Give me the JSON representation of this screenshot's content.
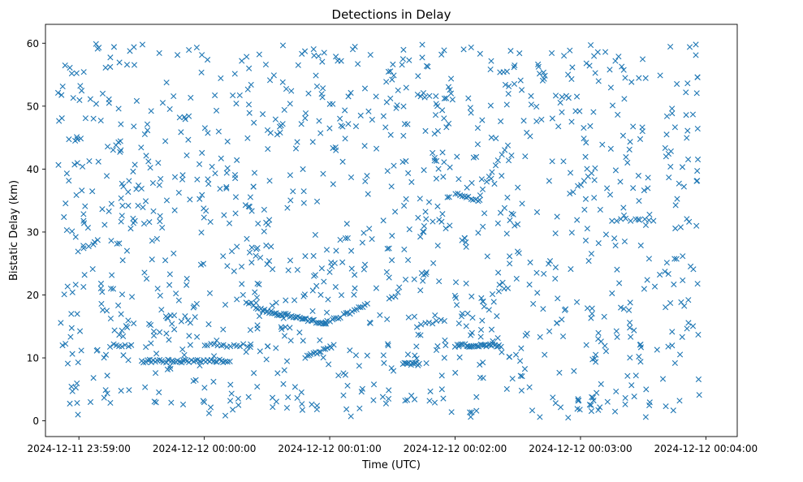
{
  "chart_data": {
    "type": "scatter",
    "title": "Detections in Delay",
    "xlabel": "Time (UTC)",
    "ylabel": "Bistatic Delay (km)",
    "x_unit": "seconds relative to 2024-12-12 00:00:00 UTC",
    "xlim": [
      -76,
      255
    ],
    "ylim": [
      -2.5,
      63
    ],
    "x_ticks": [
      {
        "value": -60,
        "label": "2024-12-11 23:59:00"
      },
      {
        "value": 0,
        "label": "2024-12-12 00:00:00"
      },
      {
        "value": 60,
        "label": "2024-12-12 00:01:00"
      },
      {
        "value": 120,
        "label": "2024-12-12 00:02:00"
      },
      {
        "value": 180,
        "label": "2024-12-12 00:03:00"
      },
      {
        "value": 240,
        "label": "2024-12-12 00:04:00"
      }
    ],
    "y_ticks": [
      0,
      10,
      20,
      30,
      40,
      50,
      60
    ],
    "marker": "x",
    "grid": false,
    "legend": "none",
    "series": [
      {
        "color": "#1f77b4",
        "noise": {
          "x_range": [
            -70,
            237
          ],
          "y_range": [
            0.5,
            60
          ],
          "count": 1150
        },
        "tracks": [
          {
            "x_start": -45,
            "x_end": -35,
            "y_start": 12,
            "y_end": 12,
            "count": 8
          },
          {
            "x_start": -30,
            "x_end": 12,
            "y_start": 9.5,
            "y_end": 9.5,
            "count": 45
          },
          {
            "x_start": 0,
            "x_end": 22,
            "y_start": 12,
            "y_end": 12,
            "count": 15
          },
          {
            "x_start": 20,
            "x_end": 28,
            "y_start": 19,
            "y_end": 17.5,
            "count": 8
          },
          {
            "x_start": 28,
            "x_end": 58,
            "y_start": 17.5,
            "y_end": 15.5,
            "count": 40
          },
          {
            "x_start": 58,
            "x_end": 78,
            "y_start": 15.5,
            "y_end": 18.5,
            "count": 20
          },
          {
            "x_start": 48,
            "x_end": 62,
            "y_start": 10,
            "y_end": 12,
            "count": 15
          },
          {
            "x_start": 95,
            "x_end": 103,
            "y_start": 9,
            "y_end": 9,
            "count": 12
          },
          {
            "x_start": 102,
            "x_end": 115,
            "y_start": 15,
            "y_end": 16,
            "count": 8
          },
          {
            "x_start": 120,
            "x_end": 142,
            "y_start": 12,
            "y_end": 12,
            "count": 30
          },
          {
            "x_start": 120,
            "x_end": 132,
            "y_start": 36,
            "y_end": 35,
            "count": 12
          },
          {
            "x_start": 132,
            "x_end": 145,
            "y_start": 36,
            "y_end": 44,
            "count": 10
          },
          {
            "x_start": 175,
            "x_end": 187,
            "y_start": 36,
            "y_end": 40,
            "count": 8
          },
          {
            "x_start": 195,
            "x_end": 215,
            "y_start": 32,
            "y_end": 32,
            "count": 10
          }
        ]
      }
    ]
  }
}
